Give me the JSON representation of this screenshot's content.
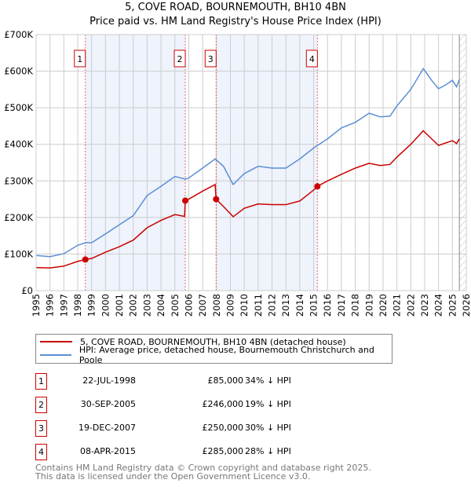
{
  "title": "5, COVE ROAD, BOURNEMOUTH, BH10 4BN",
  "subtitle": "Price paid vs. HM Land Registry's House Price Index (HPI)",
  "chart_data": {
    "type": "line",
    "title": "5, COVE ROAD, BOURNEMOUTH, BH10 4BN",
    "subtitle": "Price paid vs. HM Land Registry's House Price Index (HPI)",
    "xlim": [
      1995,
      2026
    ],
    "ylim": [
      0,
      700000
    ],
    "yticks": [
      {
        "v": 0,
        "label": "£0"
      },
      {
        "v": 100000,
        "label": "£100K"
      },
      {
        "v": 200000,
        "label": "£200K"
      },
      {
        "v": 300000,
        "label": "£300K"
      },
      {
        "v": 400000,
        "label": "£400K"
      },
      {
        "v": 500000,
        "label": "£500K"
      },
      {
        "v": 600000,
        "label": "£600K"
      },
      {
        "v": 700000,
        "label": "£700K"
      }
    ],
    "xticks": [
      "1995",
      "1996",
      "1997",
      "1998",
      "1999",
      "2000",
      "2001",
      "2002",
      "2003",
      "2004",
      "2005",
      "2006",
      "2007",
      "2008",
      "2009",
      "2010",
      "2011",
      "2012",
      "2013",
      "2014",
      "2015",
      "2016",
      "2017",
      "2018",
      "2019",
      "2020",
      "2021",
      "2022",
      "2023",
      "2024",
      "2025",
      "2026"
    ],
    "grid": true,
    "shaded_periods": [
      [
        1998.55,
        2005.75
      ],
      [
        2007.97,
        2015.27
      ]
    ],
    "forecast_hatch_from": 2025.5,
    "series": [
      {
        "name": "5, COVE ROAD, BOURNEMOUTH, BH10 4BN (detached house)",
        "color": "#cc0000",
        "x": [
          1995,
          1996,
          1997,
          1998,
          1998.55,
          1999,
          2000,
          2001,
          2002,
          2003,
          2004,
          2005,
          2005.7,
          2005.75,
          2006,
          2007,
          2007.9,
          2007.97,
          2008.5,
          2009.2,
          2010,
          2011,
          2012,
          2013,
          2014,
          2015,
          2015.27,
          2016,
          2017,
          2018,
          2019,
          2019.8,
          2020.5,
          2021,
          2022,
          2022.9,
          2023.5,
          2024,
          2025,
          2025.3,
          2025.5
        ],
        "y": [
          63000,
          62000,
          67000,
          80000,
          85000,
          88000,
          105000,
          120000,
          138000,
          172000,
          192000,
          208000,
          203000,
          246000,
          250000,
          272000,
          290000,
          250000,
          230000,
          202000,
          225000,
          237000,
          235000,
          235000,
          245000,
          275000,
          285000,
          300000,
          318000,
          335000,
          348000,
          342000,
          345000,
          365000,
          400000,
          437000,
          415000,
          397000,
          410000,
          402000,
          415000
        ]
      },
      {
        "name": "HPI: Average price, detached house, Bournemouth Christchurch and Poole",
        "color": "#5b8fd4",
        "x": [
          1995,
          1996,
          1997,
          1998,
          1998.55,
          1999,
          2000,
          2001,
          2002,
          2003,
          2004,
          2005,
          2005.75,
          2006,
          2007,
          2007.9,
          2008.5,
          2009.2,
          2010,
          2011,
          2012,
          2013,
          2014,
          2015,
          2016,
          2017,
          2018,
          2019,
          2019.8,
          2020.5,
          2021,
          2022,
          2022.9,
          2023.5,
          2024,
          2024.5,
          2025,
          2025.3,
          2025.5
        ],
        "y": [
          96000,
          93000,
          101000,
          124000,
          131000,
          131000,
          155000,
          180000,
          205000,
          260000,
          285000,
          312000,
          305000,
          308000,
          335000,
          360000,
          340000,
          290000,
          320000,
          340000,
          335000,
          335000,
          360000,
          390000,
          415000,
          445000,
          460000,
          485000,
          475000,
          477000,
          505000,
          550000,
          607000,
          575000,
          552000,
          562000,
          575000,
          557000,
          577000
        ]
      }
    ],
    "sales": [
      {
        "n": "1",
        "x": 1998.55,
        "y": 85000,
        "date": "22-JUL-1998",
        "price": "£85,000",
        "hpi": "34% ↓ HPI"
      },
      {
        "n": "2",
        "x": 2005.75,
        "y": 246000,
        "date": "30-SEP-2005",
        "price": "£246,000",
        "hpi": "19% ↓ HPI"
      },
      {
        "n": "3",
        "x": 2007.97,
        "y": 250000,
        "date": "19-DEC-2007",
        "price": "£250,000",
        "hpi": "30% ↓ HPI"
      },
      {
        "n": "4",
        "x": 2015.27,
        "y": 285000,
        "date": "08-APR-2015",
        "price": "£285,000",
        "hpi": "28% ↓ HPI"
      }
    ]
  },
  "legend": {
    "property": "5, COVE ROAD, BOURNEMOUTH, BH10 4BN (detached house)",
    "hpi": "HPI: Average price, detached house, Bournemouth Christchurch and Poole"
  },
  "footer": {
    "line1": "Contains HM Land Registry data © Crown copyright and database right 2025.",
    "line2": "This data is licensed under the Open Government Licence v3.0."
  }
}
